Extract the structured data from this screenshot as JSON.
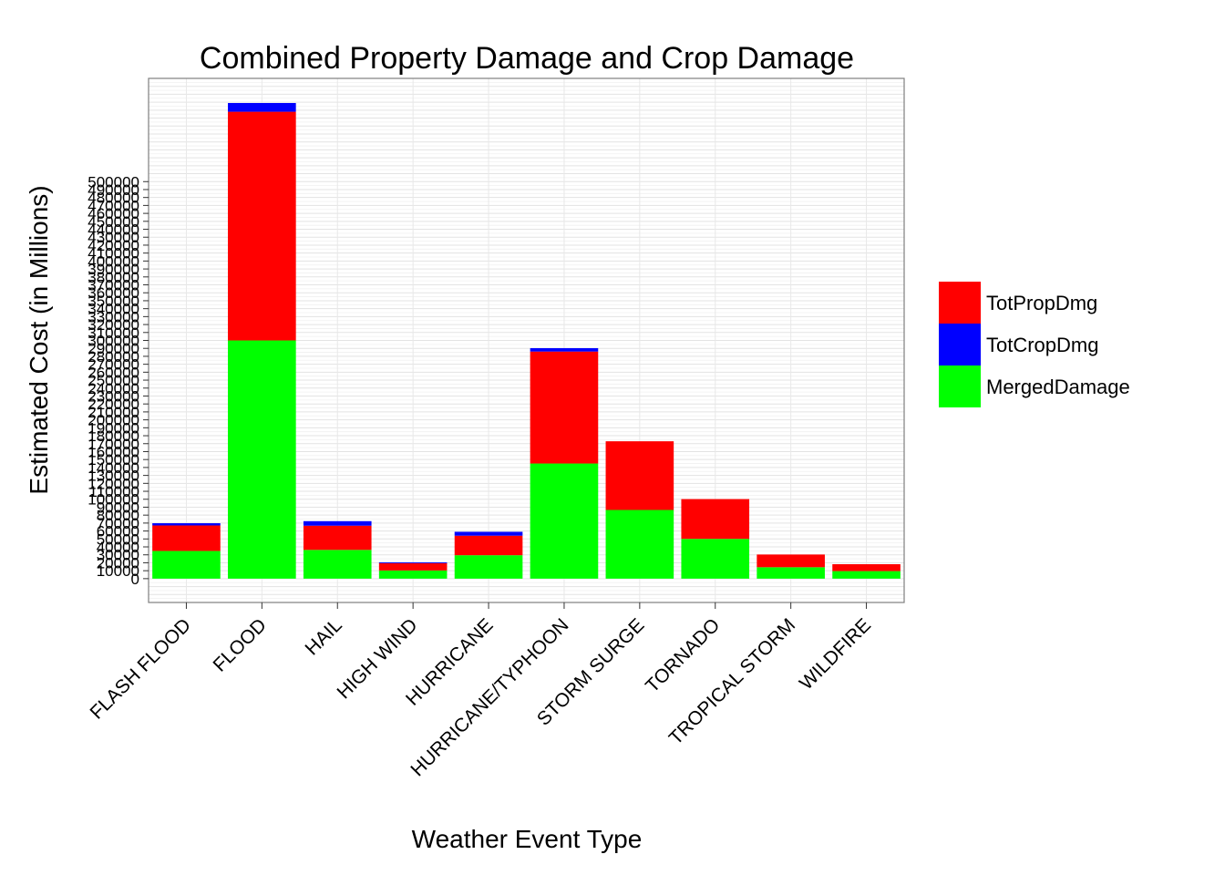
{
  "chart_data": {
    "type": "bar",
    "stacked": true,
    "title": "Combined Property Damage and Crop Damage",
    "xlabel": "Weather Event Type",
    "ylabel": "Estimated Cost (in Millions)",
    "categories": [
      "FLASH FLOOD",
      "FLOOD",
      "HAIL",
      "HIGH WIND",
      "HURRICANE",
      "HURRICANE/TYPHOON",
      "STORM SURGE",
      "TORNADO",
      "TROPICAL STORM",
      "WILDFIRE"
    ],
    "series": [
      {
        "name": "MergedDamage",
        "color": "#00ff00",
        "values": [
          34900,
          300000,
          36200,
          10300,
          29500,
          145000,
          86500,
          50100,
          14400,
          9500
        ]
      },
      {
        "name": "TotPropDmg",
        "color": "#ff0000",
        "values": [
          32100,
          288000,
          30500,
          9200,
          24600,
          141000,
          86500,
          50100,
          16000,
          8700
        ]
      },
      {
        "name": "TotCropDmg",
        "color": "#0000ff",
        "values": [
          2800,
          11000,
          5700,
          1100,
          4900,
          4300,
          0,
          0,
          0,
          0
        ]
      }
    ],
    "legend": {
      "position": "right",
      "entries": [
        {
          "label": "TotPropDmg",
          "color": "#ff0000"
        },
        {
          "label": "TotCropDmg",
          "color": "#0000ff"
        },
        {
          "label": "MergedDamage",
          "color": "#00ff00"
        }
      ]
    },
    "y_ticks": [
      0,
      10000,
      20000,
      30000,
      40000,
      50000,
      60000,
      70000,
      80000,
      90000,
      100000,
      110000,
      120000,
      130000,
      140000,
      150000,
      160000,
      170000,
      180000,
      190000,
      200000,
      210000,
      220000,
      230000,
      240000,
      250000,
      260000,
      270000,
      280000,
      290000,
      300000,
      310000,
      320000,
      330000,
      340000,
      350000,
      360000,
      370000,
      380000,
      390000,
      400000,
      410000,
      420000,
      430000,
      440000,
      450000,
      460000,
      470000,
      480000,
      490000,
      500000
    ],
    "ylim": [
      -30000,
      630000
    ],
    "grid": true,
    "panel_background": "#ffffff",
    "panel_border": "#7f7f7f"
  }
}
